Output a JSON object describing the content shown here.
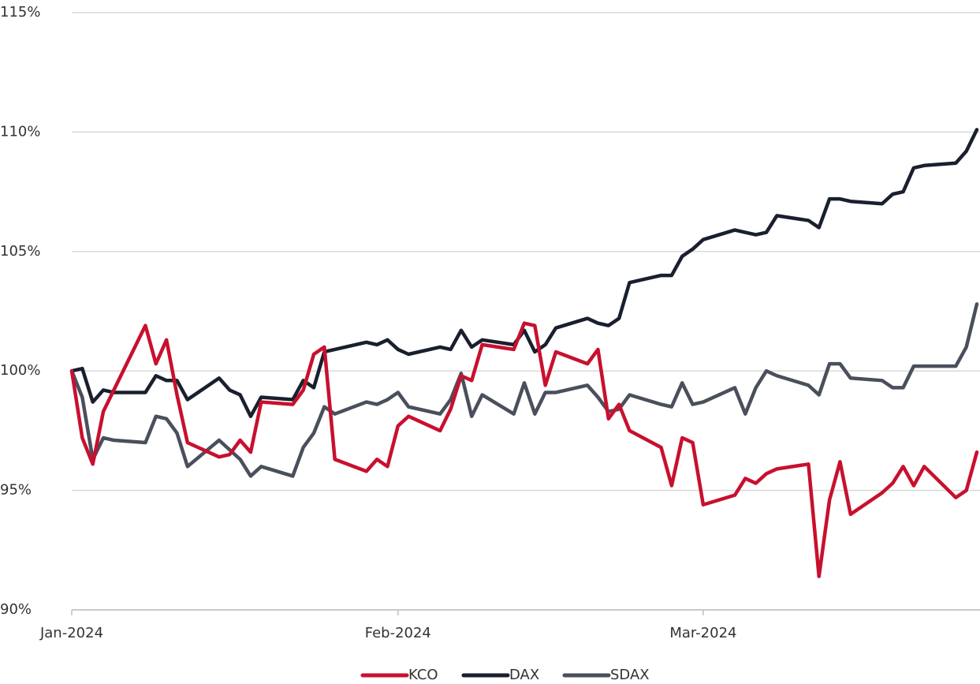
{
  "chart_data": {
    "type": "line",
    "x": [
      0,
      1,
      2,
      3,
      4,
      7,
      8,
      9,
      10,
      11,
      14,
      15,
      16,
      17,
      18,
      21,
      22,
      23,
      24,
      25,
      28,
      29,
      30,
      31,
      32,
      35,
      36,
      37,
      38,
      39,
      42,
      43,
      44,
      45,
      46,
      49,
      50,
      51,
      52,
      53,
      56,
      57,
      58,
      59,
      60,
      63,
      64,
      65,
      66,
      67,
      70,
      71,
      72,
      73,
      74,
      77,
      78,
      79,
      80,
      81,
      84,
      85,
      86
    ],
    "xlim": [
      0,
      86.3
    ],
    "xticks": [
      {
        "value": 0,
        "label": "Jan-2024"
      },
      {
        "value": 31,
        "label": "Feb-2024"
      },
      {
        "value": 60,
        "label": "Mar-2024"
      }
    ],
    "ylim": [
      90,
      115
    ],
    "yticks": [
      {
        "value": 90,
        "label": "90%"
      },
      {
        "value": 95,
        "label": "95%"
      },
      {
        "value": 100,
        "label": "100%"
      },
      {
        "value": 105,
        "label": "105%"
      },
      {
        "value": 110,
        "label": "110%"
      },
      {
        "value": 115,
        "label": "115%"
      }
    ],
    "grid": true,
    "legend": "bottom",
    "series": [
      {
        "name": "KCO",
        "color": "#c8102e",
        "values": [
          100,
          97.2,
          96.1,
          98.3,
          99.2,
          101.9,
          100.3,
          101.3,
          99.0,
          97.0,
          96.4,
          96.5,
          97.1,
          96.6,
          98.7,
          98.6,
          99.2,
          100.7,
          101.0,
          96.3,
          95.8,
          96.3,
          96.0,
          97.7,
          98.1,
          97.5,
          98.4,
          99.8,
          99.6,
          101.1,
          100.9,
          102.0,
          101.9,
          99.4,
          100.8,
          100.3,
          100.9,
          98.0,
          98.6,
          97.5,
          96.8,
          95.2,
          97.2,
          97.0,
          94.4,
          94.8,
          95.5,
          95.3,
          95.7,
          95.9,
          96.1,
          91.4,
          94.6,
          96.2,
          94.0,
          94.9,
          95.3,
          96.0,
          95.2,
          96.0,
          94.7,
          95.0,
          96.6
        ]
      },
      {
        "name": "DAX",
        "color": "#1a1f2e",
        "values": [
          100,
          100.1,
          98.7,
          99.2,
          99.1,
          99.1,
          99.8,
          99.6,
          99.6,
          98.8,
          99.7,
          99.2,
          99.0,
          98.1,
          98.9,
          98.8,
          99.6,
          99.3,
          100.8,
          100.9,
          101.2,
          101.1,
          101.3,
          100.9,
          100.7,
          101.0,
          100.9,
          101.7,
          101.0,
          101.3,
          101.1,
          101.7,
          100.8,
          101.1,
          101.8,
          102.2,
          102.0,
          101.9,
          102.2,
          103.7,
          104.0,
          104.0,
          104.8,
          105.1,
          105.5,
          105.9,
          105.8,
          105.7,
          105.8,
          106.5,
          106.3,
          106.0,
          107.2,
          107.2,
          107.1,
          107.0,
          107.4,
          107.5,
          108.5,
          108.6,
          108.7,
          109.2,
          110.1
        ]
      },
      {
        "name": "SDAX",
        "color": "#4a4f5c",
        "values": [
          100,
          98.9,
          96.3,
          97.2,
          97.1,
          97.0,
          98.1,
          98.0,
          97.4,
          96.0,
          97.1,
          96.7,
          96.3,
          95.6,
          96.0,
          95.6,
          96.8,
          97.4,
          98.5,
          98.2,
          98.7,
          98.6,
          98.8,
          99.1,
          98.5,
          98.2,
          98.8,
          99.9,
          98.1,
          99.0,
          98.2,
          99.5,
          98.2,
          99.1,
          99.1,
          99.4,
          98.9,
          98.3,
          98.4,
          99.0,
          98.6,
          98.5,
          99.5,
          98.6,
          98.7,
          99.3,
          98.2,
          99.3,
          100.0,
          99.8,
          99.4,
          99.0,
          100.3,
          100.3,
          99.7,
          99.6,
          99.3,
          99.3,
          100.2,
          100.2,
          100.2,
          101.0,
          102.8
        ]
      }
    ]
  }
}
